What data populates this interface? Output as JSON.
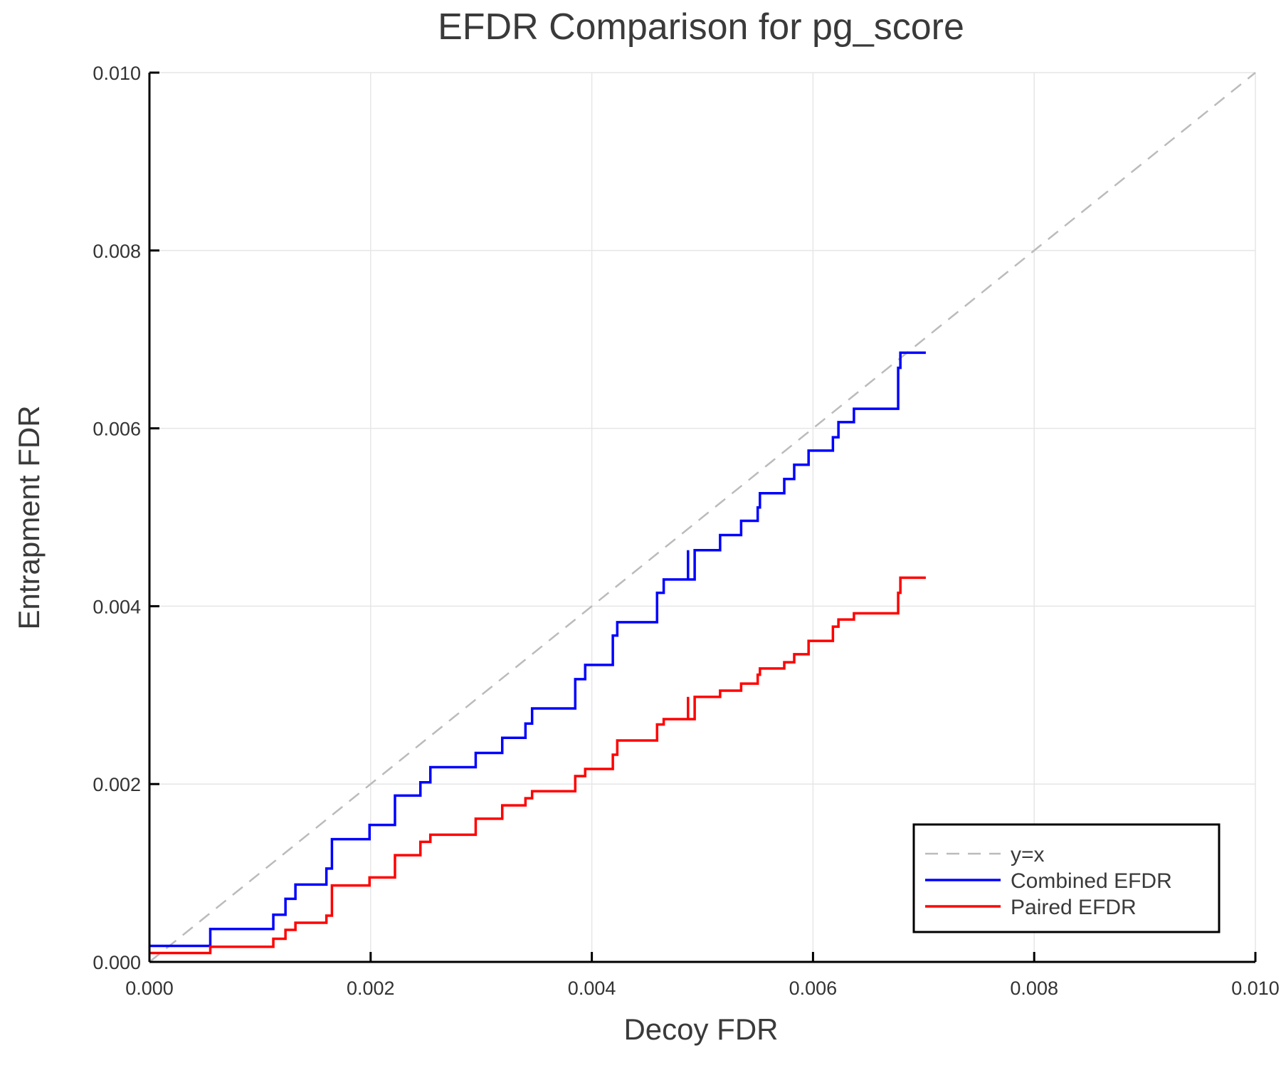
{
  "chart_data": {
    "type": "line",
    "title": "EFDR Comparison for pg_score",
    "xlabel": "Decoy FDR",
    "ylabel": "Entrapment FDR",
    "xlim": [
      0,
      0.01
    ],
    "ylim": [
      0,
      0.01
    ],
    "xticks": [
      "0.000",
      "0.002",
      "0.004",
      "0.006",
      "0.008",
      "0.010"
    ],
    "yticks": [
      "0.000",
      "0.002",
      "0.004",
      "0.006",
      "0.008",
      "0.010"
    ],
    "grid": true,
    "legend_position": "bottom-right",
    "series": [
      {
        "name": "y=x",
        "color": "#bbbbbb",
        "style": "dashed",
        "step": false,
        "points": [
          [
            0,
            0
          ],
          [
            0.01,
            0.01
          ]
        ]
      },
      {
        "name": "Combined EFDR",
        "color": "#0000ff",
        "style": "solid",
        "step": true,
        "points": [
          [
            0,
            0.00018
          ],
          [
            0.00055,
            0.00037
          ],
          [
            0.00112,
            0.00053
          ],
          [
            0.00123,
            0.00071
          ],
          [
            0.00132,
            0.00087
          ],
          [
            0.0016,
            0.00105
          ],
          [
            0.00165,
            0.00138
          ],
          [
            0.00199,
            0.00154
          ],
          [
            0.00222,
            0.00187
          ],
          [
            0.00245,
            0.00202
          ],
          [
            0.00254,
            0.00219
          ],
          [
            0.00288,
            0.00219
          ],
          [
            0.00295,
            0.00235
          ],
          [
            0.00319,
            0.00252
          ],
          [
            0.0034,
            0.00268
          ],
          [
            0.00346,
            0.00285
          ],
          [
            0.00382,
            0.00285
          ],
          [
            0.00385,
            0.00318
          ],
          [
            0.00394,
            0.00334
          ],
          [
            0.00419,
            0.00367
          ],
          [
            0.00423,
            0.00382
          ],
          [
            0.00459,
            0.00415
          ],
          [
            0.00465,
            0.0043
          ],
          [
            0.00487,
            0.00463
          ],
          [
            0.00487,
            0.0043
          ],
          [
            0.00493,
            0.00463
          ],
          [
            0.00516,
            0.0048
          ],
          [
            0.00535,
            0.00496
          ],
          [
            0.0055,
            0.00511
          ],
          [
            0.00552,
            0.00527
          ],
          [
            0.00569,
            0.00527
          ],
          [
            0.00574,
            0.00543
          ],
          [
            0.00583,
            0.00559
          ],
          [
            0.00596,
            0.00575
          ],
          [
            0.00618,
            0.0059
          ],
          [
            0.00623,
            0.00607
          ],
          [
            0.00637,
            0.00622
          ],
          [
            0.00677,
            0.00668
          ],
          [
            0.00679,
            0.00685
          ],
          [
            0.00702,
            0.00685
          ]
        ]
      },
      {
        "name": "Paired EFDR",
        "color": "#ff0000",
        "style": "solid",
        "step": true,
        "points": [
          [
            0,
            0.0001
          ],
          [
            0.00055,
            0.00017
          ],
          [
            0.00112,
            0.00026
          ],
          [
            0.00123,
            0.00036
          ],
          [
            0.00132,
            0.00044
          ],
          [
            0.0016,
            0.00052
          ],
          [
            0.00165,
            0.00086
          ],
          [
            0.00199,
            0.00095
          ],
          [
            0.00222,
            0.0012
          ],
          [
            0.00245,
            0.00135
          ],
          [
            0.00254,
            0.00143
          ],
          [
            0.00288,
            0.00143
          ],
          [
            0.00295,
            0.00161
          ],
          [
            0.00319,
            0.00176
          ],
          [
            0.0034,
            0.00184
          ],
          [
            0.00346,
            0.00192
          ],
          [
            0.00382,
            0.00192
          ],
          [
            0.00385,
            0.00209
          ],
          [
            0.00394,
            0.00217
          ],
          [
            0.00419,
            0.00233
          ],
          [
            0.00423,
            0.00249
          ],
          [
            0.00459,
            0.00267
          ],
          [
            0.00465,
            0.00273
          ],
          [
            0.00487,
            0.00298
          ],
          [
            0.00487,
            0.00273
          ],
          [
            0.00493,
            0.00298
          ],
          [
            0.00516,
            0.00305
          ],
          [
            0.00535,
            0.00313
          ],
          [
            0.0055,
            0.00323
          ],
          [
            0.00552,
            0.0033
          ],
          [
            0.00569,
            0.0033
          ],
          [
            0.00574,
            0.00337
          ],
          [
            0.00583,
            0.00346
          ],
          [
            0.00596,
            0.00361
          ],
          [
            0.00618,
            0.00377
          ],
          [
            0.00623,
            0.00385
          ],
          [
            0.00637,
            0.00392
          ],
          [
            0.00677,
            0.00415
          ],
          [
            0.00679,
            0.00432
          ],
          [
            0.00702,
            0.00432
          ]
        ]
      }
    ]
  }
}
